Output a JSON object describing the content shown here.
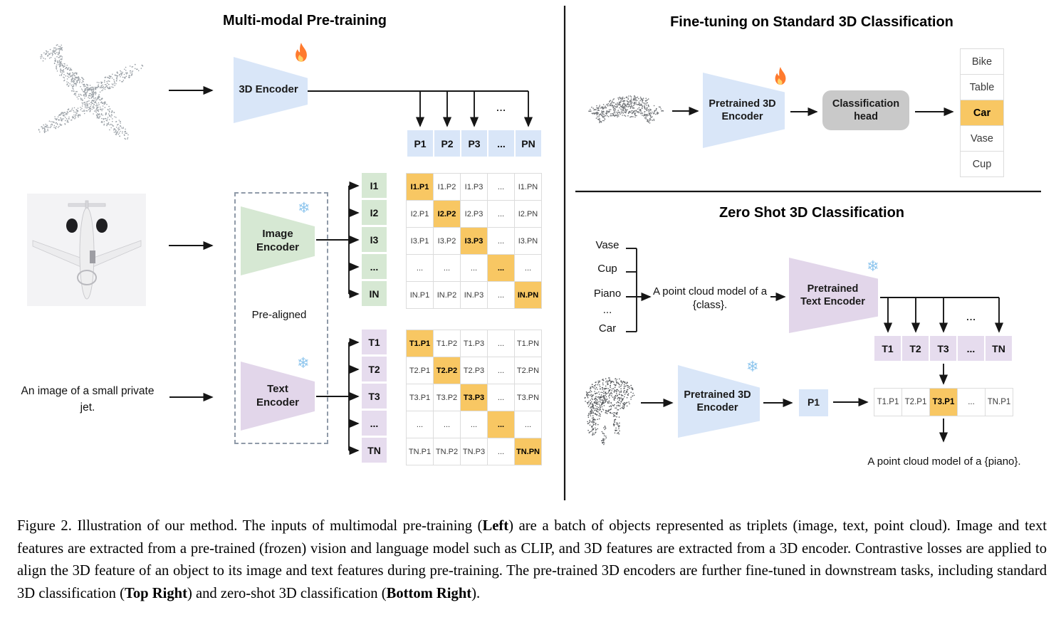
{
  "panels": {
    "pretraining": {
      "title": "Multi-modal Pre-training",
      "input_text": "An image of a small private jet.",
      "encoder_3d": "3D Encoder",
      "image_encoder": "Image Encoder",
      "text_encoder": "Text Encoder",
      "pre_aligned": "Pre-aligned",
      "ellipsis": "...",
      "p_row": [
        "P1",
        "P2",
        "P3",
        "...",
        "PN"
      ],
      "i_labels": [
        "I1",
        "I2",
        "I3",
        "...",
        "IN"
      ],
      "t_labels": [
        "T1",
        "T2",
        "T3",
        "...",
        "TN"
      ],
      "i_matrix": [
        [
          "I1.P1",
          "I1.P2",
          "I1.P3",
          "...",
          "I1.PN"
        ],
        [
          "I2.P1",
          "I2.P2",
          "I2.P3",
          "...",
          "I2.PN"
        ],
        [
          "I3.P1",
          "I3.P2",
          "I3.P3",
          "...",
          "I3.PN"
        ],
        [
          "...",
          "...",
          "...",
          "...",
          "..."
        ],
        [
          "IN.P1",
          "IN.P2",
          "IN.P3",
          "...",
          "IN.PN"
        ]
      ],
      "t_matrix": [
        [
          "T1.P1",
          "T1.P2",
          "T1.P3",
          "...",
          "T1.PN"
        ],
        [
          "T2.P1",
          "T2.P2",
          "T2.P3",
          "...",
          "T2.PN"
        ],
        [
          "T3.P1",
          "T3.P2",
          "T3.P3",
          "...",
          "T3.PN"
        ],
        [
          "...",
          "...",
          "...",
          "...",
          "..."
        ],
        [
          "TN.P1",
          "TN.P2",
          "TN.P3",
          "...",
          "TN.PN"
        ]
      ]
    },
    "finetuning": {
      "title": "Fine-tuning on Standard 3D Classification",
      "encoder": "Pretrained 3D Encoder",
      "head": "Classification head",
      "classes": [
        "Bike",
        "Table",
        "Car",
        "Vase",
        "Cup"
      ],
      "highlight_class": "Car"
    },
    "zeroshot": {
      "title": "Zero Shot 3D Classification",
      "classes": [
        "Vase",
        "Cup",
        "Piano",
        "...",
        "Car"
      ],
      "prompt": "A point cloud model of a {class}.",
      "text_encoder": "Pretrained Text Encoder",
      "encoder_3d": "Pretrained 3D Encoder",
      "p1": "P1",
      "ellipsis": "...",
      "t_row": [
        "T1",
        "T2",
        "T3",
        "...",
        "TN"
      ],
      "score_row": [
        "T1.P1",
        "T2.P1",
        "T3.P1",
        "...",
        "TN.P1"
      ],
      "result_text": "A point cloud model of a {piano}."
    }
  },
  "caption": {
    "segments": [
      {
        "text": "Figure 2. Illustration of our method. The inputs of multimodal pre-training (",
        "bold": false
      },
      {
        "text": "Left",
        "bold": true
      },
      {
        "text": ") are a batch of objects represented as triplets (image, text, point cloud).  Image and text features are extracted from a pre-trained (frozen) vision and language model such as CLIP, and 3D features are extracted from a 3D encoder.  Contrastive losses are applied to align the 3D feature of an object to its image and text features during pre-training.  The pre-trained 3D encoders are further fine-tuned in downstream tasks, including standard 3D classification (",
        "bold": false
      },
      {
        "text": "Top Right",
        "bold": true
      },
      {
        "text": ") and zero-shot 3D classification (",
        "bold": false
      },
      {
        "text": "Bottom Right",
        "bold": true
      },
      {
        "text": ").",
        "bold": false
      }
    ]
  },
  "icons": {
    "snowflake_glyph": "❄"
  },
  "colors": {
    "blue": "#d9e6f8",
    "green": "#d6e8d3",
    "purple": "#e2d6ea",
    "purple_cell": "#e6dcee",
    "highlight": "#f8c763",
    "head_gray": "#c9c9c9"
  }
}
